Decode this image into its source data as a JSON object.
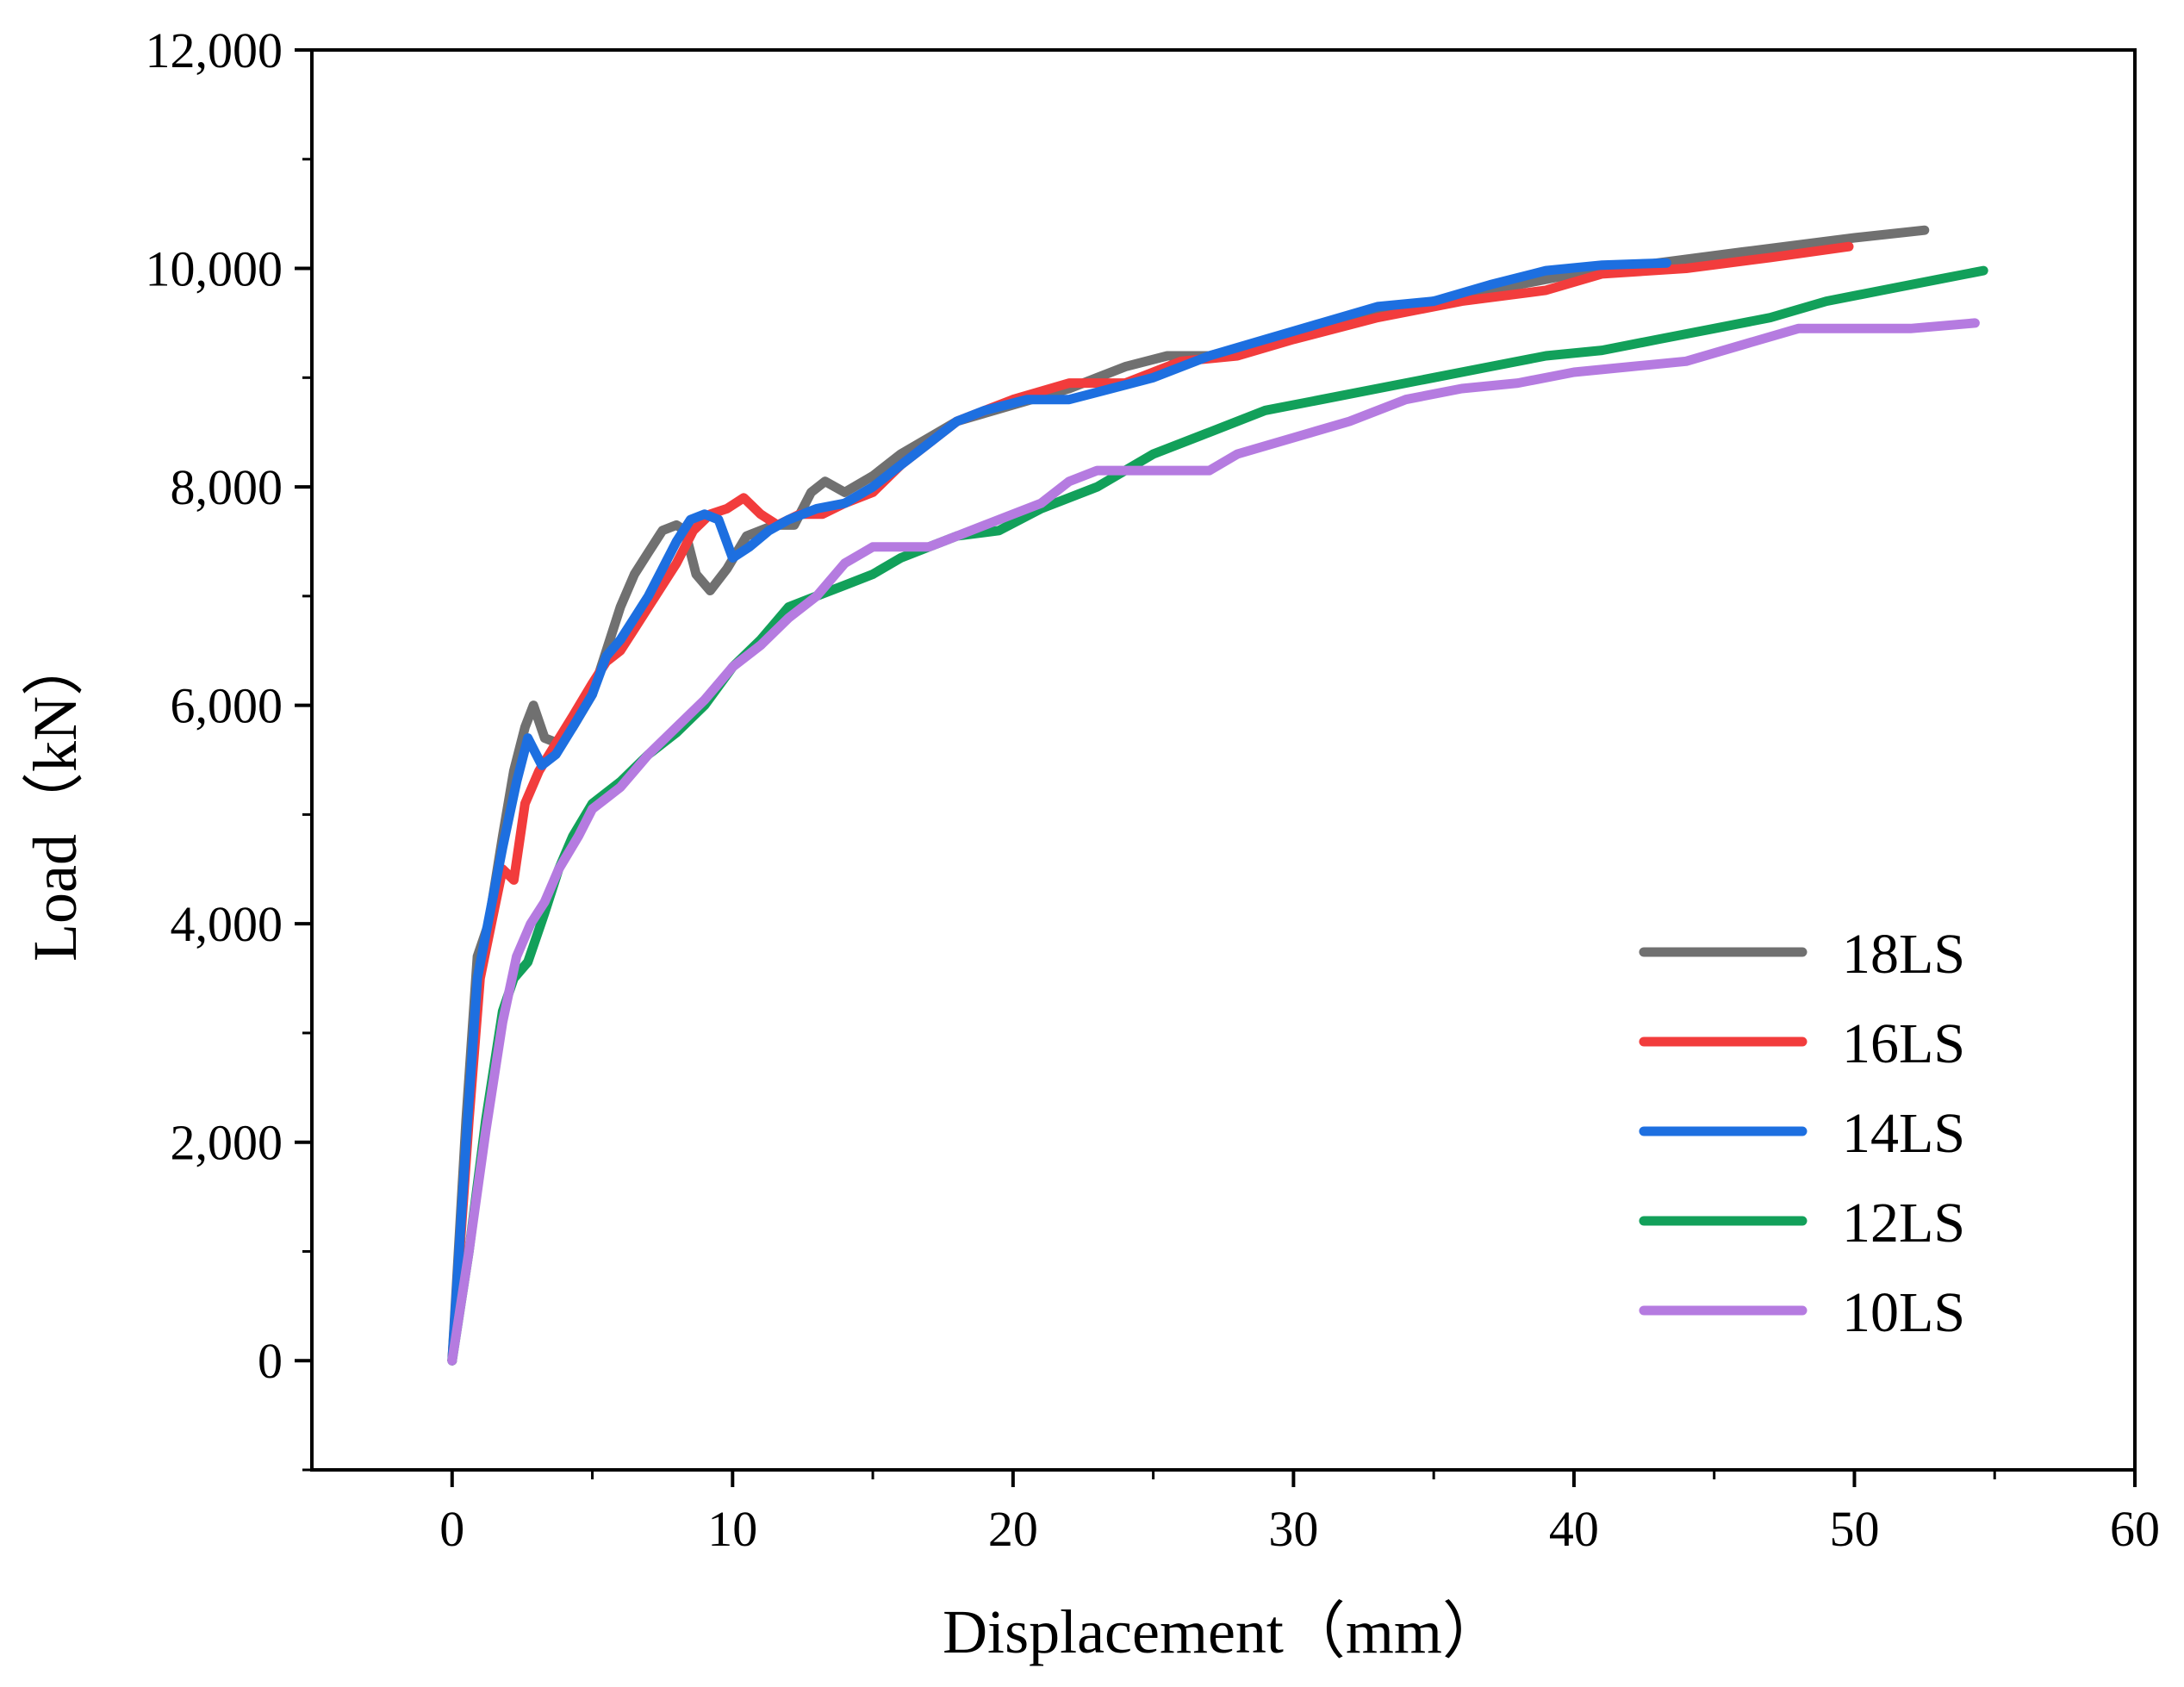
{
  "chart_data": {
    "type": "line",
    "title": "",
    "xlabel": "Displacement（mm）",
    "ylabel": "Load（kN）",
    "xlim": [
      -5,
      60
    ],
    "ylim": [
      -1000,
      12000
    ],
    "xticks": [
      0,
      10,
      20,
      30,
      40,
      50,
      60
    ],
    "xtick_labels": [
      "0",
      "10",
      "20",
      "30",
      "40",
      "50",
      "60"
    ],
    "yticks": [
      0,
      2000,
      4000,
      6000,
      8000,
      10000,
      12000
    ],
    "ytick_labels": [
      "0",
      "2,000",
      "4,000",
      "6,000",
      "8,000",
      "10,000",
      "12,000"
    ],
    "legend_position": "bottom-right",
    "series": [
      {
        "name": "18LS",
        "color": "#707070",
        "points": [
          [
            0,
            0
          ],
          [
            0.5,
            2200
          ],
          [
            0.9,
            3700
          ],
          [
            1.3,
            4000
          ],
          [
            1.8,
            4800
          ],
          [
            2.2,
            5400
          ],
          [
            2.6,
            5800
          ],
          [
            2.9,
            6000
          ],
          [
            3.3,
            5700
          ],
          [
            3.8,
            5650
          ],
          [
            4.3,
            5800
          ],
          [
            5,
            6100
          ],
          [
            5.5,
            6500
          ],
          [
            6,
            6900
          ],
          [
            6.5,
            7200
          ],
          [
            7,
            7400
          ],
          [
            7.5,
            7600
          ],
          [
            8,
            7650
          ],
          [
            8.3,
            7600
          ],
          [
            8.7,
            7200
          ],
          [
            9.2,
            7050
          ],
          [
            9.8,
            7250
          ],
          [
            10.5,
            7550
          ],
          [
            11.5,
            7650
          ],
          [
            12.2,
            7650
          ],
          [
            12.8,
            7950
          ],
          [
            13.3,
            8050
          ],
          [
            14,
            7950
          ],
          [
            15,
            8100
          ],
          [
            16,
            8300
          ],
          [
            17,
            8450
          ],
          [
            18,
            8600
          ],
          [
            20,
            8750
          ],
          [
            22,
            8900
          ],
          [
            24,
            9100
          ],
          [
            25.5,
            9200
          ],
          [
            27,
            9200
          ],
          [
            30,
            9400
          ],
          [
            33,
            9600
          ],
          [
            36,
            9750
          ],
          [
            40,
            9950
          ],
          [
            43,
            10050
          ],
          [
            46,
            10150
          ],
          [
            50,
            10280
          ],
          [
            52.5,
            10350
          ]
        ]
      },
      {
        "name": "16LS",
        "color": "#f23c3c",
        "points": [
          [
            0,
            0
          ],
          [
            0.6,
            2200
          ],
          [
            1,
            3500
          ],
          [
            1.4,
            4000
          ],
          [
            1.8,
            4500
          ],
          [
            2.2,
            4400
          ],
          [
            2.6,
            5100
          ],
          [
            3.1,
            5400
          ],
          [
            3.7,
            5650
          ],
          [
            4.3,
            5900
          ],
          [
            5,
            6200
          ],
          [
            5.5,
            6400
          ],
          [
            6,
            6500
          ],
          [
            6.5,
            6700
          ],
          [
            7,
            6900
          ],
          [
            7.5,
            7100
          ],
          [
            8,
            7300
          ],
          [
            8.6,
            7600
          ],
          [
            9.2,
            7750
          ],
          [
            9.8,
            7800
          ],
          [
            10.4,
            7900
          ],
          [
            11,
            7750
          ],
          [
            11.6,
            7650
          ],
          [
            12.4,
            7750
          ],
          [
            13.2,
            7750
          ],
          [
            14,
            7850
          ],
          [
            15,
            7950
          ],
          [
            16,
            8200
          ],
          [
            17,
            8400
          ],
          [
            18,
            8600
          ],
          [
            20,
            8800
          ],
          [
            22,
            8950
          ],
          [
            24,
            8950
          ],
          [
            26,
            9150
          ],
          [
            28,
            9200
          ],
          [
            30,
            9350
          ],
          [
            33,
            9550
          ],
          [
            36,
            9700
          ],
          [
            39,
            9800
          ],
          [
            41,
            9950
          ],
          [
            44,
            10000
          ],
          [
            47,
            10100
          ],
          [
            49.8,
            10200
          ]
        ]
      },
      {
        "name": "14LS",
        "color": "#1d6fe0",
        "points": [
          [
            0,
            0
          ],
          [
            0.5,
            2000
          ],
          [
            0.9,
            3500
          ],
          [
            1.2,
            3900
          ],
          [
            1.8,
            4700
          ],
          [
            2.3,
            5300
          ],
          [
            2.7,
            5700
          ],
          [
            3.2,
            5450
          ],
          [
            3.7,
            5550
          ],
          [
            4.3,
            5800
          ],
          [
            5,
            6100
          ],
          [
            5.5,
            6450
          ],
          [
            6,
            6600
          ],
          [
            6.5,
            6800
          ],
          [
            7,
            7000
          ],
          [
            7.5,
            7250
          ],
          [
            8,
            7500
          ],
          [
            8.5,
            7700
          ],
          [
            9,
            7750
          ],
          [
            9.5,
            7700
          ],
          [
            10,
            7350
          ],
          [
            10.6,
            7450
          ],
          [
            11.3,
            7600
          ],
          [
            12,
            7700
          ],
          [
            13,
            7800
          ],
          [
            14,
            7850
          ],
          [
            15,
            8000
          ],
          [
            16,
            8200
          ],
          [
            17,
            8400
          ],
          [
            18,
            8600
          ],
          [
            19,
            8700
          ],
          [
            20.5,
            8800
          ],
          [
            22,
            8800
          ],
          [
            23.5,
            8900
          ],
          [
            25,
            9000
          ],
          [
            27,
            9200
          ],
          [
            29,
            9350
          ],
          [
            31,
            9500
          ],
          [
            33,
            9650
          ],
          [
            35,
            9700
          ],
          [
            37,
            9850
          ],
          [
            39,
            9980
          ],
          [
            41,
            10030
          ],
          [
            43.3,
            10050
          ]
        ]
      },
      {
        "name": "12LS",
        "color": "#12a05a",
        "points": [
          [
            0,
            0
          ],
          [
            0.6,
            1000
          ],
          [
            1.2,
            2200
          ],
          [
            1.8,
            3200
          ],
          [
            2.2,
            3500
          ],
          [
            2.7,
            3650
          ],
          [
            3.3,
            4100
          ],
          [
            3.8,
            4500
          ],
          [
            4.3,
            4800
          ],
          [
            5,
            5100
          ],
          [
            6,
            5300
          ],
          [
            7,
            5550
          ],
          [
            8,
            5750
          ],
          [
            9,
            6000
          ],
          [
            10,
            6350
          ],
          [
            11,
            6600
          ],
          [
            12,
            6900
          ],
          [
            13,
            7000
          ],
          [
            14,
            7100
          ],
          [
            15,
            7200
          ],
          [
            16,
            7350
          ],
          [
            17,
            7450
          ],
          [
            18,
            7550
          ],
          [
            19.5,
            7600
          ],
          [
            21,
            7800
          ],
          [
            23,
            8000
          ],
          [
            25,
            8300
          ],
          [
            27,
            8500
          ],
          [
            29,
            8700
          ],
          [
            31,
            8800
          ],
          [
            33,
            8900
          ],
          [
            35,
            9000
          ],
          [
            37,
            9100
          ],
          [
            39,
            9200
          ],
          [
            41,
            9250
          ],
          [
            43,
            9350
          ],
          [
            45,
            9450
          ],
          [
            47,
            9550
          ],
          [
            49,
            9700
          ],
          [
            51,
            9800
          ],
          [
            53,
            9900
          ],
          [
            54.6,
            9980
          ]
        ]
      },
      {
        "name": "10LS",
        "color": "#b57be0",
        "points": [
          [
            0,
            0
          ],
          [
            0.6,
            1000
          ],
          [
            1.2,
            2100
          ],
          [
            1.8,
            3100
          ],
          [
            2.3,
            3700
          ],
          [
            2.8,
            4000
          ],
          [
            3.3,
            4200
          ],
          [
            3.8,
            4500
          ],
          [
            4.5,
            4800
          ],
          [
            5,
            5050
          ],
          [
            5.5,
            5150
          ],
          [
            6,
            5250
          ],
          [
            6.5,
            5400
          ],
          [
            7,
            5550
          ],
          [
            8,
            5800
          ],
          [
            9,
            6050
          ],
          [
            10,
            6350
          ],
          [
            11,
            6550
          ],
          [
            12,
            6800
          ],
          [
            13,
            7000
          ],
          [
            14,
            7300
          ],
          [
            15,
            7450
          ],
          [
            16,
            7450
          ],
          [
            17,
            7450
          ],
          [
            18,
            7550
          ],
          [
            19,
            7650
          ],
          [
            20,
            7750
          ],
          [
            21,
            7850
          ],
          [
            22,
            8050
          ],
          [
            23,
            8150
          ],
          [
            24,
            8150
          ],
          [
            25.5,
            8150
          ],
          [
            27,
            8150
          ],
          [
            28,
            8300
          ],
          [
            30,
            8450
          ],
          [
            32,
            8600
          ],
          [
            34,
            8800
          ],
          [
            36,
            8900
          ],
          [
            38,
            8950
          ],
          [
            40,
            9050
          ],
          [
            42,
            9100
          ],
          [
            44,
            9150
          ],
          [
            46,
            9300
          ],
          [
            48,
            9450
          ],
          [
            50,
            9450
          ],
          [
            52,
            9450
          ],
          [
            54.3,
            9500
          ]
        ]
      }
    ]
  }
}
